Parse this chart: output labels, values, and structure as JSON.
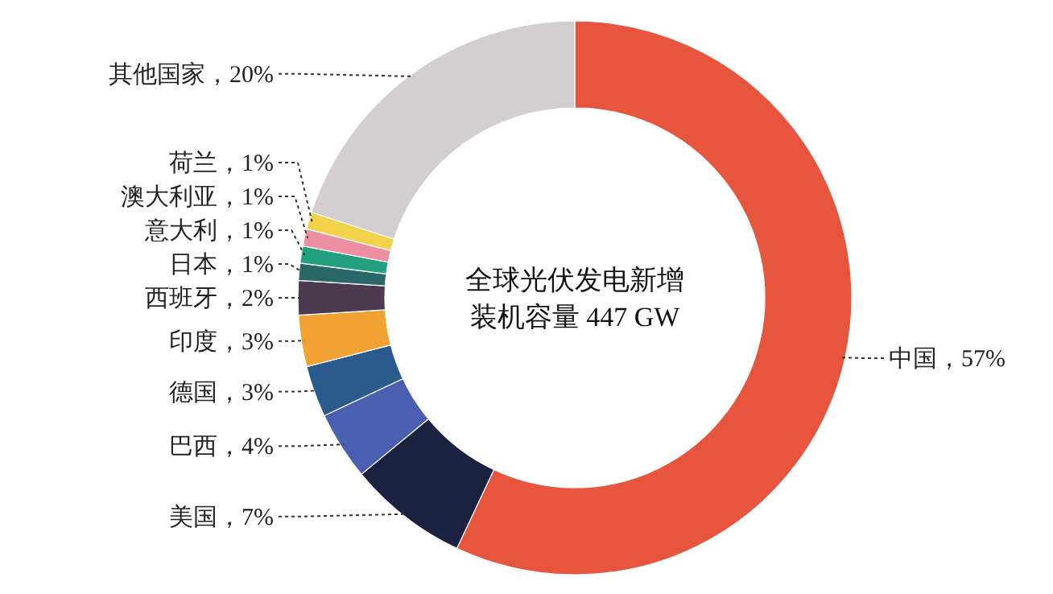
{
  "chart_data": {
    "type": "donut",
    "categories": [
      "中国",
      "美国",
      "巴西",
      "德国",
      "印度",
      "西班牙",
      "日本",
      "意大利",
      "澳大利亚",
      "荷兰",
      "其他国家"
    ],
    "values": [
      57,
      7,
      4,
      3,
      3,
      2,
      1,
      1,
      1,
      1,
      20
    ],
    "colors": [
      "#e8553f",
      "#1b2240",
      "#4a5fb0",
      "#2b5b8c",
      "#f2a233",
      "#4b3a50",
      "#2a6868",
      "#22a080",
      "#ec8fa3",
      "#f2d24a",
      "#d3cfcf"
    ],
    "value_labels": [
      "，57%",
      "，7%",
      "，4%",
      "，3%",
      "，3%",
      "，2%",
      "，1%",
      "，1%",
      "，1%",
      "，1%",
      "，20%"
    ],
    "annotations": [
      "全球光伏发电新增装机容量 447 GW"
    ]
  }
}
